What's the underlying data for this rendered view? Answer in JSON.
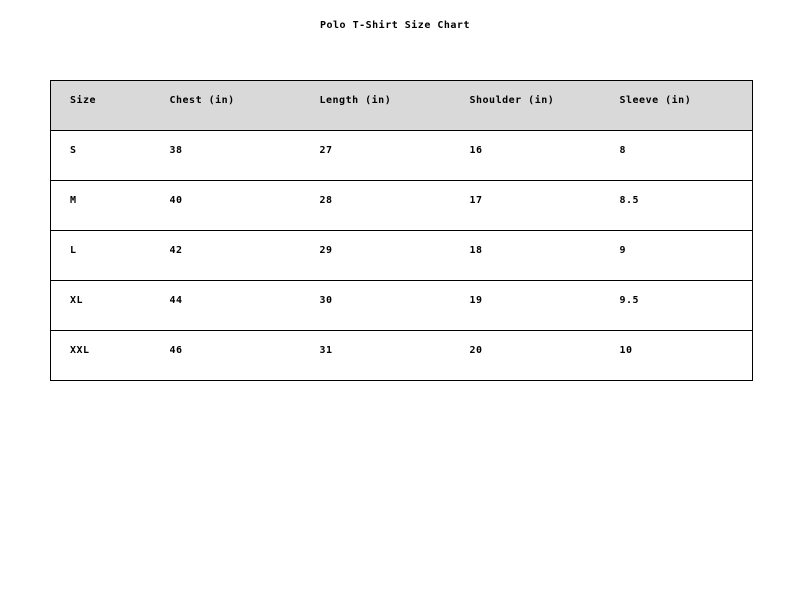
{
  "page": {
    "title": "Polo T-Shirt Size Chart"
  },
  "chart_data": {
    "type": "table",
    "title": "Polo T-Shirt Size Chart",
    "columns": [
      "Size",
      "Chest (in)",
      "Length (in)",
      "Shoulder (in)",
      "Sleeve (in)"
    ],
    "rows": [
      [
        "S",
        "38",
        "27",
        "16",
        "8"
      ],
      [
        "M",
        "40",
        "28",
        "17",
        "8.5"
      ],
      [
        "L",
        "42",
        "29",
        "18",
        "9"
      ],
      [
        "XL",
        "44",
        "30",
        "19",
        "9.5"
      ],
      [
        "XXL",
        "46",
        "31",
        "20",
        "10"
      ]
    ],
    "layout": {
      "header_bg": "#d9d9d9",
      "row_bg": "#ffffff",
      "border_color": "#000000",
      "grid": "horizontal-only"
    }
  }
}
